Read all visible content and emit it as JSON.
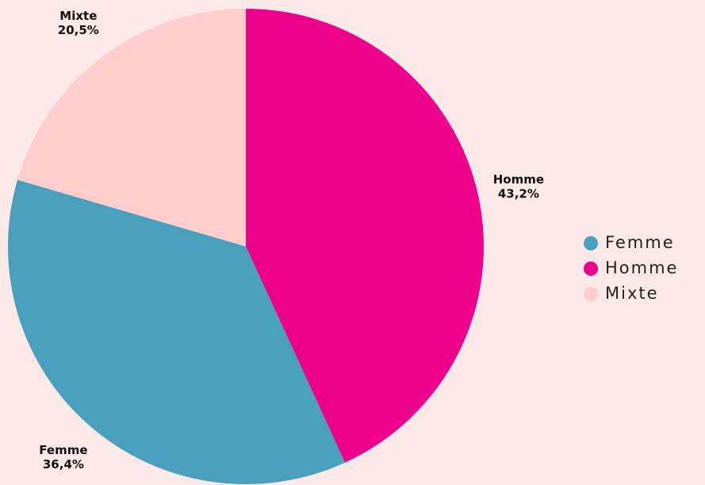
{
  "chart_data": {
    "type": "pie",
    "categories": [
      "Homme",
      "Femme",
      "Mixte"
    ],
    "values": [
      43.2,
      36.4,
      20.5
    ],
    "value_labels": [
      "43,2%",
      "36,4%",
      "20,5%"
    ],
    "colors": [
      "#ec008c",
      "#48a0bc",
      "#ffcdcb"
    ],
    "legend": "right"
  }
}
